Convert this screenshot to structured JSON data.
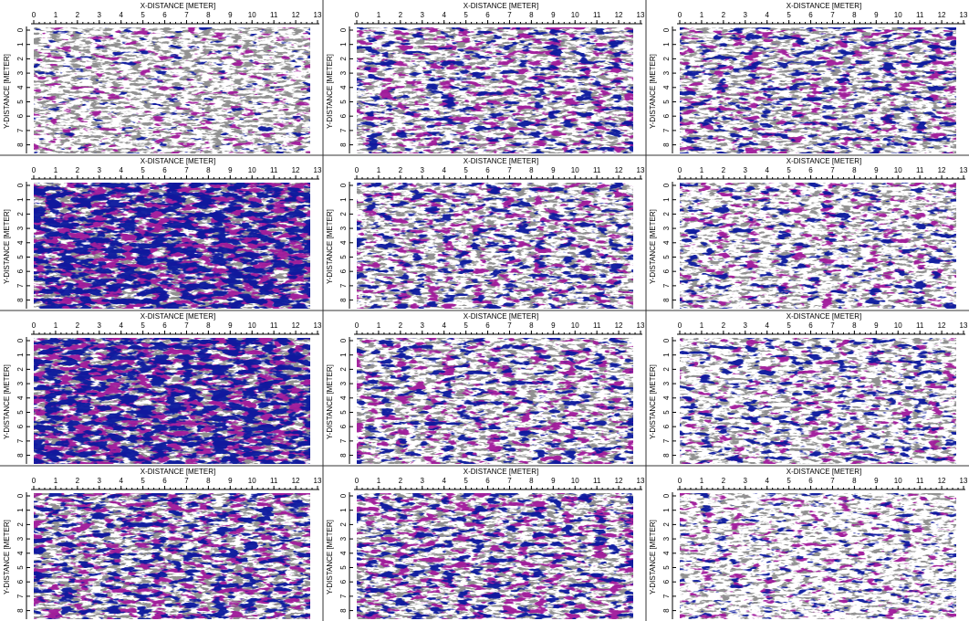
{
  "chart_data": [
    {
      "type": "heatmap",
      "xlabel": "X-DISTANCE [METER]",
      "ylabel": "Y-DISTANCE [METER]",
      "xlim": [
        0,
        13
      ],
      "ylim": [
        0,
        8.6
      ],
      "xticks": [
        0,
        1,
        2,
        3,
        4,
        5,
        6,
        7,
        8,
        9,
        10,
        11,
        12,
        13
      ],
      "yticks": [
        0,
        1,
        2,
        3,
        4,
        5,
        6,
        7,
        8
      ],
      "colors": [
        "#ffffff",
        "#8c8c8c",
        "#a0189a",
        "#0a189e"
      ]
    },
    {
      "type": "heatmap",
      "xlabel": "X-DISTANCE [METER]",
      "ylabel": "Y-DISTANCE [METER]",
      "xlim": [
        0,
        13
      ],
      "ylim": [
        0,
        8.6
      ],
      "xticks": [
        0,
        1,
        2,
        3,
        4,
        5,
        6,
        7,
        8,
        9,
        10,
        11,
        12,
        13
      ],
      "yticks": [
        0,
        1,
        2,
        3,
        4,
        5,
        6,
        7,
        8
      ],
      "colors": [
        "#ffffff",
        "#8c8c8c",
        "#a0189a",
        "#0a189e"
      ]
    },
    {
      "type": "heatmap",
      "xlabel": "X-DISTANCE [METER]",
      "ylabel": "Y-DISTANCE [METER]",
      "xlim": [
        0,
        13
      ],
      "ylim": [
        0,
        8.6
      ],
      "xticks": [
        0,
        1,
        2,
        3,
        4,
        5,
        6,
        7,
        8,
        9,
        10,
        11,
        12,
        13
      ],
      "yticks": [
        0,
        1,
        2,
        3,
        4,
        5,
        6,
        7,
        8
      ],
      "colors": [
        "#ffffff",
        "#8c8c8c",
        "#a0189a",
        "#0a189e"
      ]
    },
    {
      "type": "heatmap",
      "xlabel": "X-DISTANCE [METER]",
      "ylabel": "Y-DISTANCE [METER]",
      "xlim": [
        0,
        13
      ],
      "ylim": [
        0,
        8.6
      ],
      "xticks": [
        0,
        1,
        2,
        3,
        4,
        5,
        6,
        7,
        8,
        9,
        10,
        11,
        12,
        13
      ],
      "yticks": [
        0,
        1,
        2,
        3,
        4,
        5,
        6,
        7,
        8
      ],
      "colors": [
        "#ffffff",
        "#8c8c8c",
        "#a0189a",
        "#0a189e"
      ]
    },
    {
      "type": "heatmap",
      "xlabel": "X-DISTANCE [METER]",
      "ylabel": "Y-DISTANCE [METER]",
      "xlim": [
        0,
        13
      ],
      "ylim": [
        0,
        8.6
      ],
      "xticks": [
        0,
        1,
        2,
        3,
        4,
        5,
        6,
        7,
        8,
        9,
        10,
        11,
        12,
        13
      ],
      "yticks": [
        0,
        1,
        2,
        3,
        4,
        5,
        6,
        7,
        8
      ],
      "colors": [
        "#ffffff",
        "#8c8c8c",
        "#a0189a",
        "#0a189e"
      ]
    },
    {
      "type": "heatmap",
      "xlabel": "X-DISTANCE [METER]",
      "ylabel": "Y-DISTANCE [METER]",
      "xlim": [
        0,
        13
      ],
      "ylim": [
        0,
        8.6
      ],
      "xticks": [
        0,
        1,
        2,
        3,
        4,
        5,
        6,
        7,
        8,
        9,
        10,
        11,
        12,
        13
      ],
      "yticks": [
        0,
        1,
        2,
        3,
        4,
        5,
        6,
        7,
        8
      ],
      "colors": [
        "#ffffff",
        "#8c8c8c",
        "#a0189a",
        "#0a189e"
      ]
    },
    {
      "type": "heatmap",
      "xlabel": "X-DISTANCE [METER]",
      "ylabel": "Y-DISTANCE [METER]",
      "xlim": [
        0,
        13
      ],
      "ylim": [
        0,
        8.6
      ],
      "xticks": [
        0,
        1,
        2,
        3,
        4,
        5,
        6,
        7,
        8,
        9,
        10,
        11,
        12,
        13
      ],
      "yticks": [
        0,
        1,
        2,
        3,
        4,
        5,
        6,
        7,
        8
      ],
      "colors": [
        "#ffffff",
        "#8c8c8c",
        "#a0189a",
        "#0a189e"
      ]
    },
    {
      "type": "heatmap",
      "xlabel": "X-DISTANCE [METER]",
      "ylabel": "Y-DISTANCE [METER]",
      "xlim": [
        0,
        13
      ],
      "ylim": [
        0,
        8.6
      ],
      "xticks": [
        0,
        1,
        2,
        3,
        4,
        5,
        6,
        7,
        8,
        9,
        10,
        11,
        12,
        13
      ],
      "yticks": [
        0,
        1,
        2,
        3,
        4,
        5,
        6,
        7,
        8
      ],
      "colors": [
        "#ffffff",
        "#8c8c8c",
        "#a0189a",
        "#0a189e"
      ]
    },
    {
      "type": "heatmap",
      "xlabel": "X-DISTANCE [METER]",
      "ylabel": "Y-DISTANCE [METER]",
      "xlim": [
        0,
        13
      ],
      "ylim": [
        0,
        8.6
      ],
      "xticks": [
        0,
        1,
        2,
        3,
        4,
        5,
        6,
        7,
        8,
        9,
        10,
        11,
        12,
        13
      ],
      "yticks": [
        0,
        1,
        2,
        3,
        4,
        5,
        6,
        7,
        8
      ],
      "colors": [
        "#ffffff",
        "#8c8c8c",
        "#a0189a",
        "#0a189e"
      ]
    },
    {
      "type": "heatmap",
      "xlabel": "X-DISTANCE [METER]",
      "ylabel": "Y-DISTANCE [METER]",
      "xlim": [
        0,
        13
      ],
      "ylim": [
        0,
        8.6
      ],
      "xticks": [
        0,
        1,
        2,
        3,
        4,
        5,
        6,
        7,
        8,
        9,
        10,
        11,
        12,
        13
      ],
      "yticks": [
        0,
        1,
        2,
        3,
        4,
        5,
        6,
        7,
        8
      ],
      "colors": [
        "#ffffff",
        "#8c8c8c",
        "#a0189a",
        "#0a189e"
      ]
    },
    {
      "type": "heatmap",
      "xlabel": "X-DISTANCE [METER]",
      "ylabel": "Y-DISTANCE [METER]",
      "xlim": [
        0,
        13
      ],
      "ylim": [
        0,
        8.6
      ],
      "xticks": [
        0,
        1,
        2,
        3,
        4,
        5,
        6,
        7,
        8,
        9,
        10,
        11,
        12,
        13
      ],
      "yticks": [
        0,
        1,
        2,
        3,
        4,
        5,
        6,
        7,
        8
      ],
      "colors": [
        "#ffffff",
        "#8c8c8c",
        "#a0189a",
        "#0a189e"
      ]
    },
    {
      "type": "heatmap",
      "xlabel": "X-DISTANCE [METER]",
      "ylabel": "Y-DISTANCE [METER]",
      "xlim": [
        0,
        13
      ],
      "ylim": [
        0,
        8.6
      ],
      "xticks": [
        0,
        1,
        2,
        3,
        4,
        5,
        6,
        7,
        8,
        9,
        10,
        11,
        12,
        13
      ],
      "yticks": [
        0,
        1,
        2,
        3,
        4,
        5,
        6,
        7,
        8
      ],
      "colors": [
        "#ffffff",
        "#8c8c8c",
        "#a0189a",
        "#0a189e"
      ]
    }
  ]
}
